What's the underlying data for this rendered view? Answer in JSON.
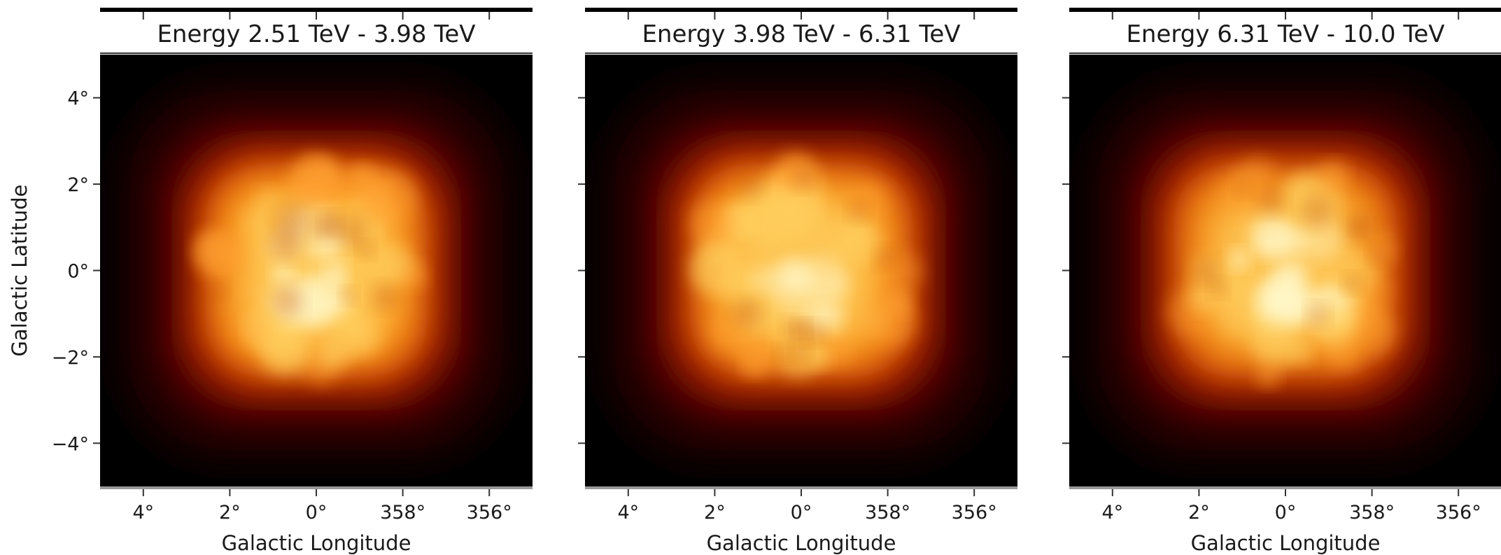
{
  "chart_data": [
    {
      "type": "heatmap",
      "title": "Energy 2.51 TeV - 3.98 TeV",
      "xlabel": "Galactic Longitude",
      "ylabel": "Galactic Latitude",
      "x_ticks": [
        "4°",
        "2°",
        "0°",
        "358°",
        "356°"
      ],
      "x_tick_values": [
        4,
        2,
        0,
        -2,
        -4
      ],
      "y_ticks": [
        "4°",
        "2°",
        "0°",
        "−2°",
        "−4°"
      ],
      "y_tick_values": [
        4,
        2,
        0,
        -2,
        -4
      ],
      "xlim": [
        5,
        -5
      ],
      "ylim": [
        -5,
        5
      ],
      "colormap": "afmhot",
      "source_extent_deg": [
        3.0,
        2.9
      ],
      "peak_intensity": 1.0
    },
    {
      "type": "heatmap",
      "title": "Energy 3.98 TeV - 6.31 TeV",
      "xlabel": "Galactic Longitude",
      "ylabel": "",
      "x_ticks": [
        "4°",
        "2°",
        "0°",
        "358°",
        "356°"
      ],
      "x_tick_values": [
        4,
        2,
        0,
        -2,
        -4
      ],
      "y_ticks": [],
      "y_tick_values": [
        4,
        2,
        0,
        -2,
        -4
      ],
      "xlim": [
        5,
        -5
      ],
      "ylim": [
        -5,
        5
      ],
      "colormap": "afmhot",
      "source_extent_deg": [
        3.0,
        2.9
      ],
      "peak_intensity": 0.97
    },
    {
      "type": "heatmap",
      "title": "Energy 6.31 TeV - 10.0 TeV",
      "xlabel": "Galactic Longitude",
      "ylabel": "",
      "x_ticks": [
        "4°",
        "2°",
        "0°",
        "358°",
        "356°"
      ],
      "x_tick_values": [
        4,
        2,
        0,
        -2,
        -4
      ],
      "y_ticks": [],
      "y_tick_values": [
        4,
        2,
        0,
        -2,
        -4
      ],
      "xlim": [
        5,
        -5
      ],
      "ylim": [
        -5,
        5
      ],
      "colormap": "afmhot",
      "source_extent_deg": [
        3.0,
        2.9
      ],
      "peak_intensity": 0.92
    }
  ],
  "colors": {
    "background": "#000000",
    "hot_white": "#fffbd0",
    "hot_yellow": "#ffd060",
    "hot_orange": "#f07a10",
    "hot_red": "#a82200",
    "dark_red": "#3c0500",
    "axis_top": "#000000",
    "axis_bottom": "#999999"
  }
}
